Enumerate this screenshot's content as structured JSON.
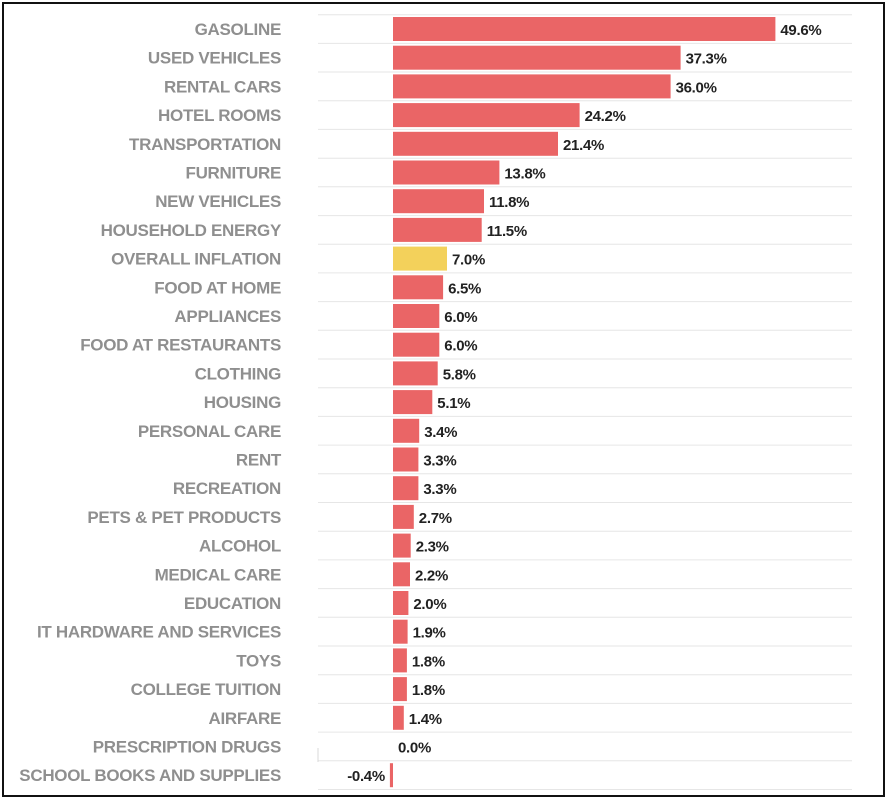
{
  "chart_data": {
    "type": "bar",
    "orientation": "horizontal",
    "categories": [
      "GASOLINE",
      "USED VEHICLES",
      "RENTAL CARS",
      "HOTEL ROOMS",
      "TRANSPORTATION",
      "FURNITURE",
      "NEW VEHICLES",
      "HOUSEHOLD ENERGY",
      "OVERALL INFLATION",
      "FOOD AT HOME",
      "APPLIANCES",
      "FOOD AT RESTAURANTS",
      "CLOTHING",
      "HOUSING",
      "PERSONAL CARE",
      "RENT",
      "RECREATION",
      "PETS & PET PRODUCTS",
      "ALCOHOL",
      "MEDICAL CARE",
      "EDUCATION",
      "IT HARDWARE AND SERVICES",
      "TOYS",
      "COLLEGE TUITION",
      "AIRFARE",
      "PRESCRIPTION DRUGS",
      "SCHOOL BOOKS AND SUPPLIES"
    ],
    "values": [
      49.6,
      37.3,
      36.0,
      24.2,
      21.4,
      13.8,
      11.8,
      11.5,
      7.0,
      6.5,
      6.0,
      6.0,
      5.8,
      5.1,
      3.4,
      3.3,
      3.3,
      2.7,
      2.3,
      2.2,
      2.0,
      1.9,
      1.8,
      1.8,
      1.4,
      0.0,
      -0.4
    ],
    "value_labels": [
      "49.6%",
      "37.3%",
      "36.0%",
      "24.2%",
      "21.4%",
      "13.8%",
      "11.8%",
      "11.5%",
      "7.0%",
      "6.5%",
      "6.0%",
      "6.0%",
      "5.8%",
      "5.1%",
      "3.4%",
      "3.3%",
      "3.3%",
      "2.7%",
      "2.3%",
      "2.2%",
      "2.0%",
      "1.9%",
      "1.8%",
      "1.8%",
      "1.4%",
      "0.0%",
      "-0.4%"
    ],
    "highlight_category": "OVERALL INFLATION",
    "colors": {
      "bar": "#ea6566",
      "highlight": "#f3d15b",
      "grid": "#e6e6e6",
      "label": "#8f8f8f",
      "value": "#222222"
    },
    "grid": true,
    "legend": "none",
    "xlim": [
      -10,
      50
    ]
  }
}
